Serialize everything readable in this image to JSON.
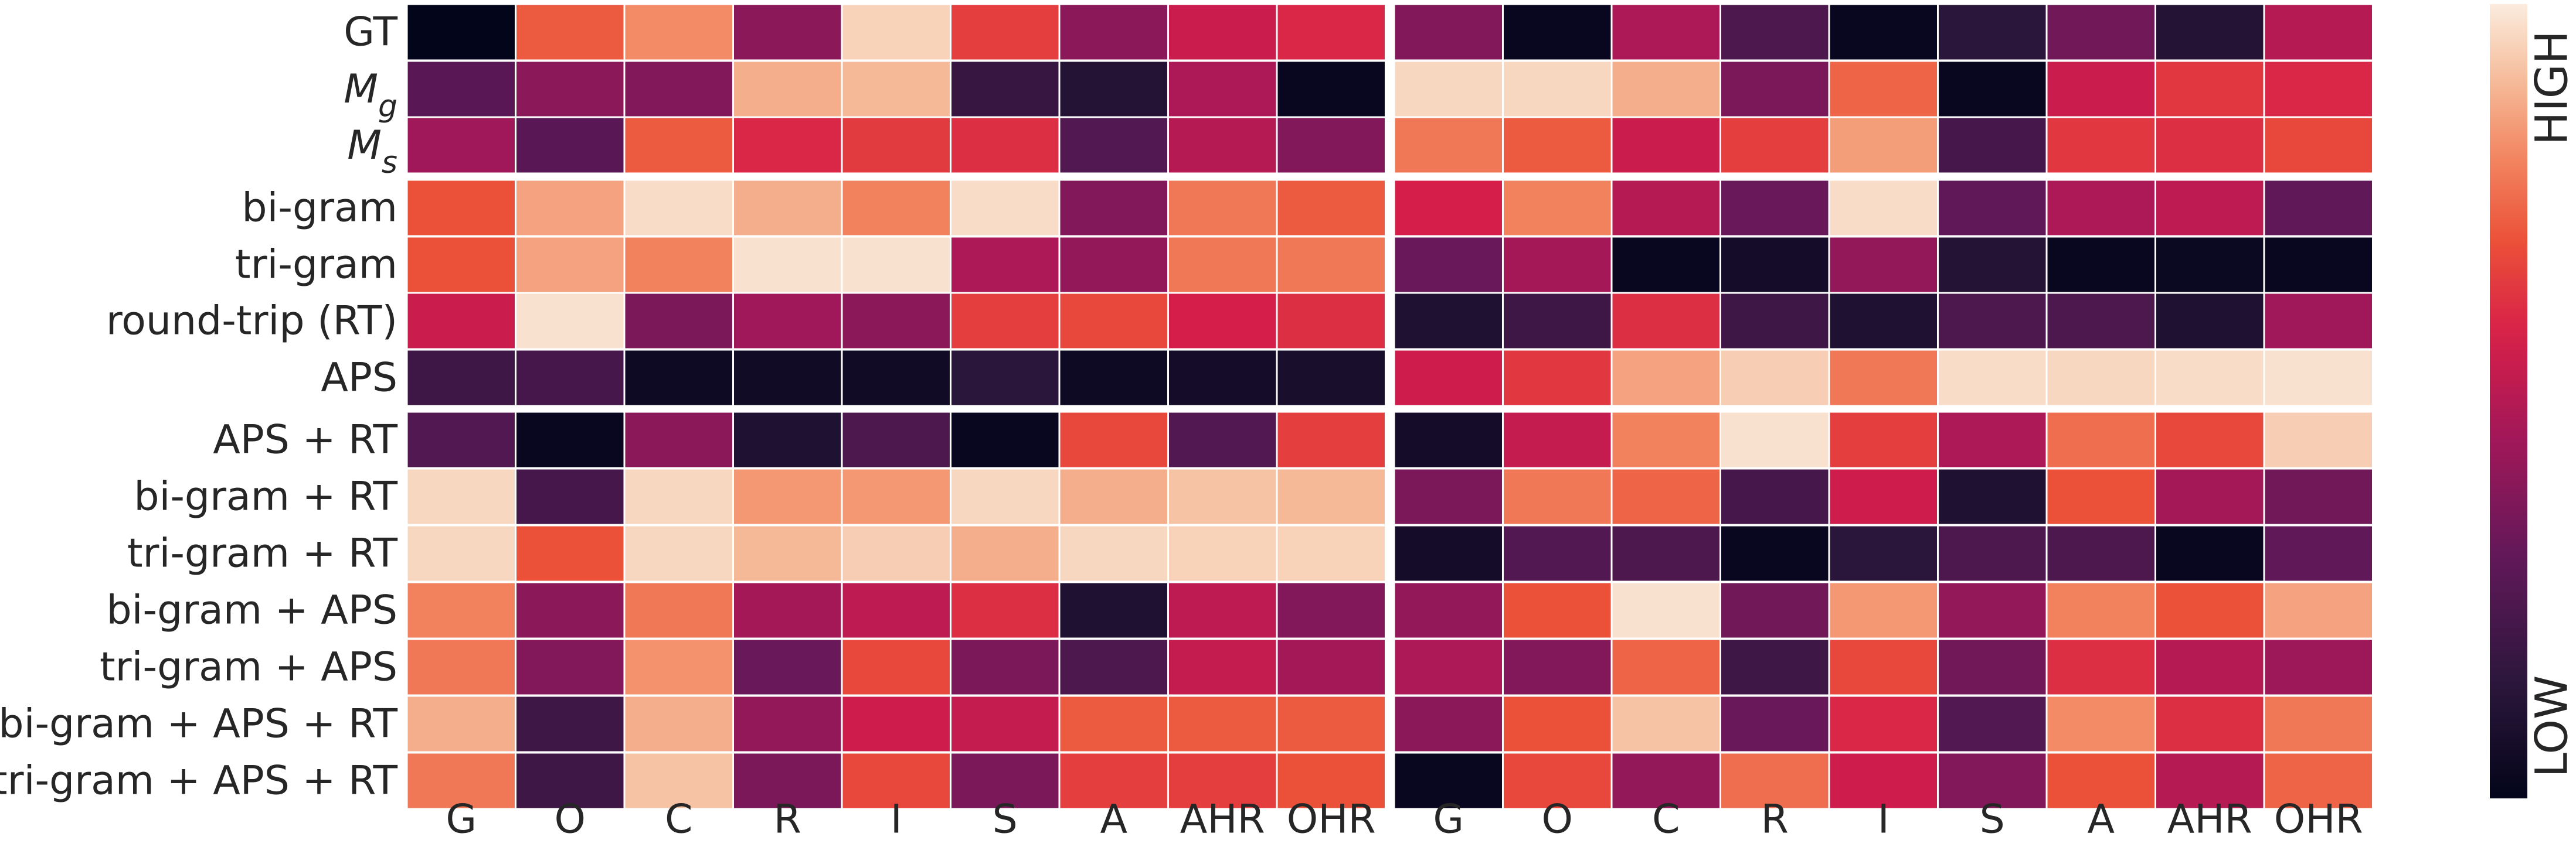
{
  "chart_data": {
    "type": "heatmap",
    "title": "",
    "columns": [
      "G",
      "O",
      "C",
      "R",
      "I",
      "S",
      "A",
      "AHR",
      "OHR"
    ],
    "rows": [
      {
        "label": "GT",
        "italic": false,
        "sub": ""
      },
      {
        "label": "M",
        "italic": true,
        "sub": "g"
      },
      {
        "label": "M",
        "italic": true,
        "sub": "s"
      },
      {
        "label": "bi-gram",
        "italic": false,
        "sub": ""
      },
      {
        "label": "tri-gram",
        "italic": false,
        "sub": ""
      },
      {
        "label": "round-trip (RT)",
        "italic": false,
        "sub": ""
      },
      {
        "label": "APS",
        "italic": false,
        "sub": ""
      },
      {
        "label": "APS + RT",
        "italic": false,
        "sub": ""
      },
      {
        "label": "bi-gram + RT",
        "italic": false,
        "sub": ""
      },
      {
        "label": "tri-gram + RT",
        "italic": false,
        "sub": ""
      },
      {
        "label": "bi-gram + APS",
        "italic": false,
        "sub": ""
      },
      {
        "label": "tri-gram + APS",
        "italic": false,
        "sub": ""
      },
      {
        "label": "bi-gram + APS + RT",
        "italic": false,
        "sub": ""
      },
      {
        "label": "tri-gram + APS + RT",
        "italic": false,
        "sub": ""
      }
    ],
    "row_groups": [
      [
        0,
        2
      ],
      [
        3,
        6
      ],
      [
        7,
        13
      ]
    ],
    "panels": [
      {
        "name": "left",
        "values": [
          [
            0.0,
            0.72,
            0.82,
            0.4,
            0.95,
            0.66,
            0.4,
            0.55,
            0.6
          ],
          [
            0.28,
            0.4,
            0.38,
            0.88,
            0.9,
            0.18,
            0.12,
            0.48,
            0.02
          ],
          [
            0.45,
            0.28,
            0.72,
            0.6,
            0.65,
            0.62,
            0.26,
            0.5,
            0.38
          ],
          [
            0.7,
            0.86,
            0.97,
            0.88,
            0.8,
            0.97,
            0.38,
            0.78,
            0.72
          ],
          [
            0.7,
            0.86,
            0.8,
            0.98,
            0.98,
            0.48,
            0.42,
            0.78,
            0.78
          ],
          [
            0.55,
            0.98,
            0.36,
            0.45,
            0.4,
            0.66,
            0.68,
            0.58,
            0.62
          ],
          [
            0.2,
            0.22,
            0.04,
            0.05,
            0.05,
            0.14,
            0.04,
            0.06,
            0.08
          ],
          [
            0.26,
            0.02,
            0.4,
            0.1,
            0.24,
            0.02,
            0.68,
            0.26,
            0.66
          ],
          [
            0.96,
            0.22,
            0.96,
            0.84,
            0.84,
            0.96,
            0.88,
            0.92,
            0.9
          ],
          [
            0.96,
            0.7,
            0.96,
            0.9,
            0.94,
            0.88,
            0.96,
            0.95,
            0.95
          ],
          [
            0.8,
            0.4,
            0.78,
            0.46,
            0.52,
            0.62,
            0.1,
            0.52,
            0.38
          ],
          [
            0.78,
            0.38,
            0.83,
            0.32,
            0.68,
            0.36,
            0.24,
            0.54,
            0.46
          ],
          [
            0.88,
            0.2,
            0.88,
            0.42,
            0.56,
            0.54,
            0.72,
            0.72,
            0.72
          ],
          [
            0.78,
            0.2,
            0.92,
            0.36,
            0.68,
            0.36,
            0.66,
            0.66,
            0.7
          ]
        ]
      },
      {
        "name": "right",
        "values": [
          [
            0.38,
            0.02,
            0.48,
            0.24,
            0.02,
            0.14,
            0.34,
            0.12,
            0.5
          ],
          [
            0.96,
            0.96,
            0.88,
            0.36,
            0.74,
            0.02,
            0.55,
            0.64,
            0.6
          ],
          [
            0.78,
            0.72,
            0.55,
            0.66,
            0.85,
            0.22,
            0.64,
            0.62,
            0.68
          ],
          [
            0.58,
            0.8,
            0.5,
            0.32,
            0.97,
            0.3,
            0.48,
            0.52,
            0.3
          ],
          [
            0.32,
            0.46,
            0.02,
            0.06,
            0.42,
            0.12,
            0.02,
            0.03,
            0.02
          ],
          [
            0.1,
            0.2,
            0.62,
            0.2,
            0.1,
            0.24,
            0.24,
            0.1,
            0.45
          ],
          [
            0.56,
            0.64,
            0.86,
            0.94,
            0.78,
            0.97,
            0.96,
            0.97,
            0.98
          ],
          [
            0.06,
            0.54,
            0.8,
            0.98,
            0.66,
            0.48,
            0.76,
            0.68,
            0.94
          ],
          [
            0.36,
            0.78,
            0.74,
            0.22,
            0.56,
            0.1,
            0.7,
            0.46,
            0.34
          ],
          [
            0.06,
            0.26,
            0.24,
            0.02,
            0.14,
            0.24,
            0.24,
            0.02,
            0.3
          ],
          [
            0.42,
            0.7,
            0.98,
            0.34,
            0.84,
            0.42,
            0.8,
            0.7,
            0.86
          ],
          [
            0.48,
            0.38,
            0.74,
            0.2,
            0.68,
            0.34,
            0.62,
            0.5,
            0.44
          ],
          [
            0.4,
            0.7,
            0.92,
            0.32,
            0.6,
            0.26,
            0.82,
            0.62,
            0.78
          ],
          [
            0.02,
            0.68,
            0.42,
            0.76,
            0.56,
            0.38,
            0.7,
            0.5,
            0.74
          ]
        ]
      }
    ],
    "colorbar": {
      "colormap": "rocket",
      "low_label": "LOW",
      "high_label": "HIGH",
      "range": [
        0,
        1
      ]
    },
    "xlabel": "",
    "ylabel": ""
  }
}
